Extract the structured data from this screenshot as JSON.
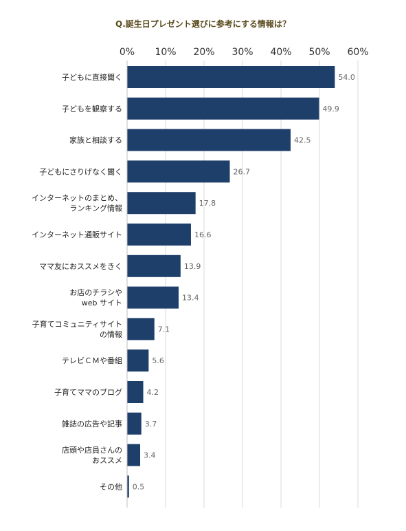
{
  "chart_data": {
    "type": "bar",
    "orientation": "horizontal",
    "title": "Q.誕生日プレゼント選びに参考にする情報は？",
    "xlabel": "",
    "ylabel": "",
    "xlim": [
      0,
      60
    ],
    "xticks": [
      0,
      10,
      20,
      30,
      40,
      50,
      60
    ],
    "tick_suffix": "%",
    "grid": true,
    "bar_color": "#1f3f6b",
    "categories": [
      [
        "子どもに直接聞く"
      ],
      [
        "子どもを観察する"
      ],
      [
        "家族と相談する"
      ],
      [
        "子どもにさりげなく聞く"
      ],
      [
        "インターネットのまとめ、",
        "ランキング情報"
      ],
      [
        "インターネット通販サイト"
      ],
      [
        "ママ友におススメをきく"
      ],
      [
        "お店のチラシや",
        "web サイト"
      ],
      [
        "子育てコミュニティサイト",
        "の情報"
      ],
      [
        "テレビＣＭや番組"
      ],
      [
        "子育てママのブログ"
      ],
      [
        "雑誌の広告や記事"
      ],
      [
        "店頭や店員さんの",
        "おススメ"
      ],
      [
        "その他"
      ]
    ],
    "values": [
      54.0,
      49.9,
      42.5,
      26.7,
      17.8,
      16.6,
      13.9,
      13.4,
      7.1,
      5.6,
      4.2,
      3.7,
      3.4,
      0.5
    ],
    "value_labels": [
      "54.0",
      "49.9",
      "42.5",
      "26.7",
      "17.8",
      "16.6",
      "13.9",
      "13.4",
      "7.1",
      "5.6",
      "4.2",
      "3.7",
      "3.4",
      "0.5"
    ]
  }
}
